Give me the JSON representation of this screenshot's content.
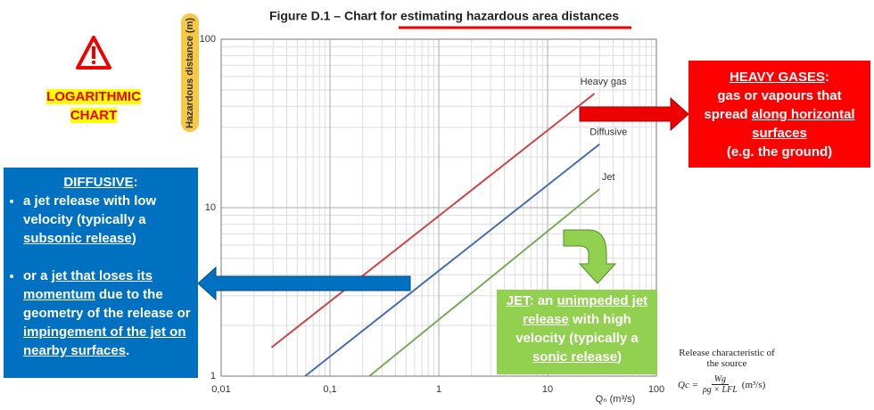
{
  "chart_data": {
    "type": "line",
    "title": "Figure D.1 – Chart for estimating hazardous area distances",
    "x_label": "Qₙ (m³/s)",
    "y_label": "Hazardous distance (m)",
    "log_x": true,
    "log_y": true,
    "grid": true,
    "xlim": [
      0.01,
      100
    ],
    "ylim": [
      1,
      100
    ],
    "xticks": [
      {
        "value": 0.01,
        "label": "0,01"
      },
      {
        "value": 0.1,
        "label": "0,1"
      },
      1,
      10,
      100
    ],
    "yticks": [
      1,
      10,
      100
    ],
    "series": [
      {
        "name": "Heavy gas",
        "color": "#c8484c",
        "x": [
          0.029,
          27
        ],
        "values": [
          1.48,
          47.6
        ]
      },
      {
        "name": "Diffusive",
        "color": "#4a6db0",
        "x": [
          0.059,
          30
        ],
        "values": [
          1,
          23.8
        ]
      },
      {
        "name": "Jet",
        "color": "#7da85e",
        "x": [
          0.23,
          30
        ],
        "values": [
          1,
          12.9
        ]
      }
    ]
  },
  "annotations": {
    "logarithmic": [
      "LOGARITHMIC",
      "CHART"
    ],
    "heavy_gases": [
      "HEAVY GASES",
      ":",
      "gas or vapours that",
      "spread ",
      "along horizontal surfaces",
      "(e.g. the ground)"
    ],
    "diffusive": {
      "heading": [
        "DIFFUSIVE",
        ":"
      ],
      "bullet_1": [
        "a jet release with low velocity (typically a ",
        "subsonic release",
        ")"
      ],
      "bullet_2": [
        "or a ",
        "jet that loses its momentum",
        " due to the geometry of the release or ",
        "impingement of the jet on nearby surfaces",
        "."
      ]
    },
    "jet": [
      "JET",
      ": an ",
      "unimpeded jet release",
      " with high velocity (typically a ",
      "sonic release",
      ")"
    ],
    "formula": {
      "caption": "Release characteristic of the source",
      "lhs": "Qc =",
      "numerator": "Wg",
      "denominator": "ρg × LFL",
      "unit": "(m³/s)"
    }
  }
}
